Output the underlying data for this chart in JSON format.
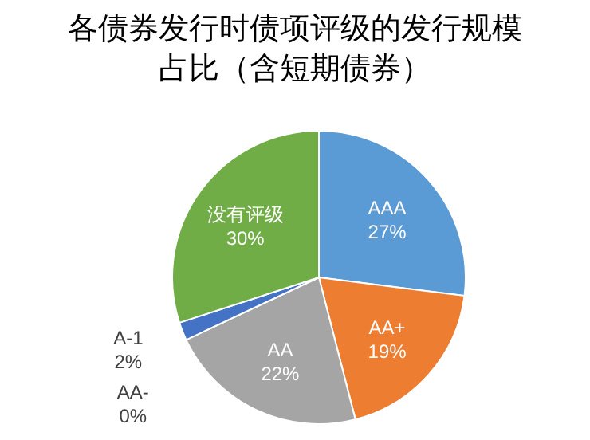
{
  "chart_data": {
    "type": "pie",
    "title": "各债券发行时债项评级的发行规模占比（含短期债券）",
    "categories": [
      "AAA",
      "AA+",
      "AA",
      "AA-",
      "A-1",
      "没有评级"
    ],
    "values": [
      27,
      19,
      22,
      0,
      2,
      30
    ],
    "colors": [
      "#5b9bd5",
      "#ed7d31",
      "#a5a5a5",
      null,
      "#4472c4",
      "#70ad47"
    ],
    "value_labels": [
      "27%",
      "19%",
      "22%",
      "0%",
      "2%",
      "30%"
    ]
  }
}
